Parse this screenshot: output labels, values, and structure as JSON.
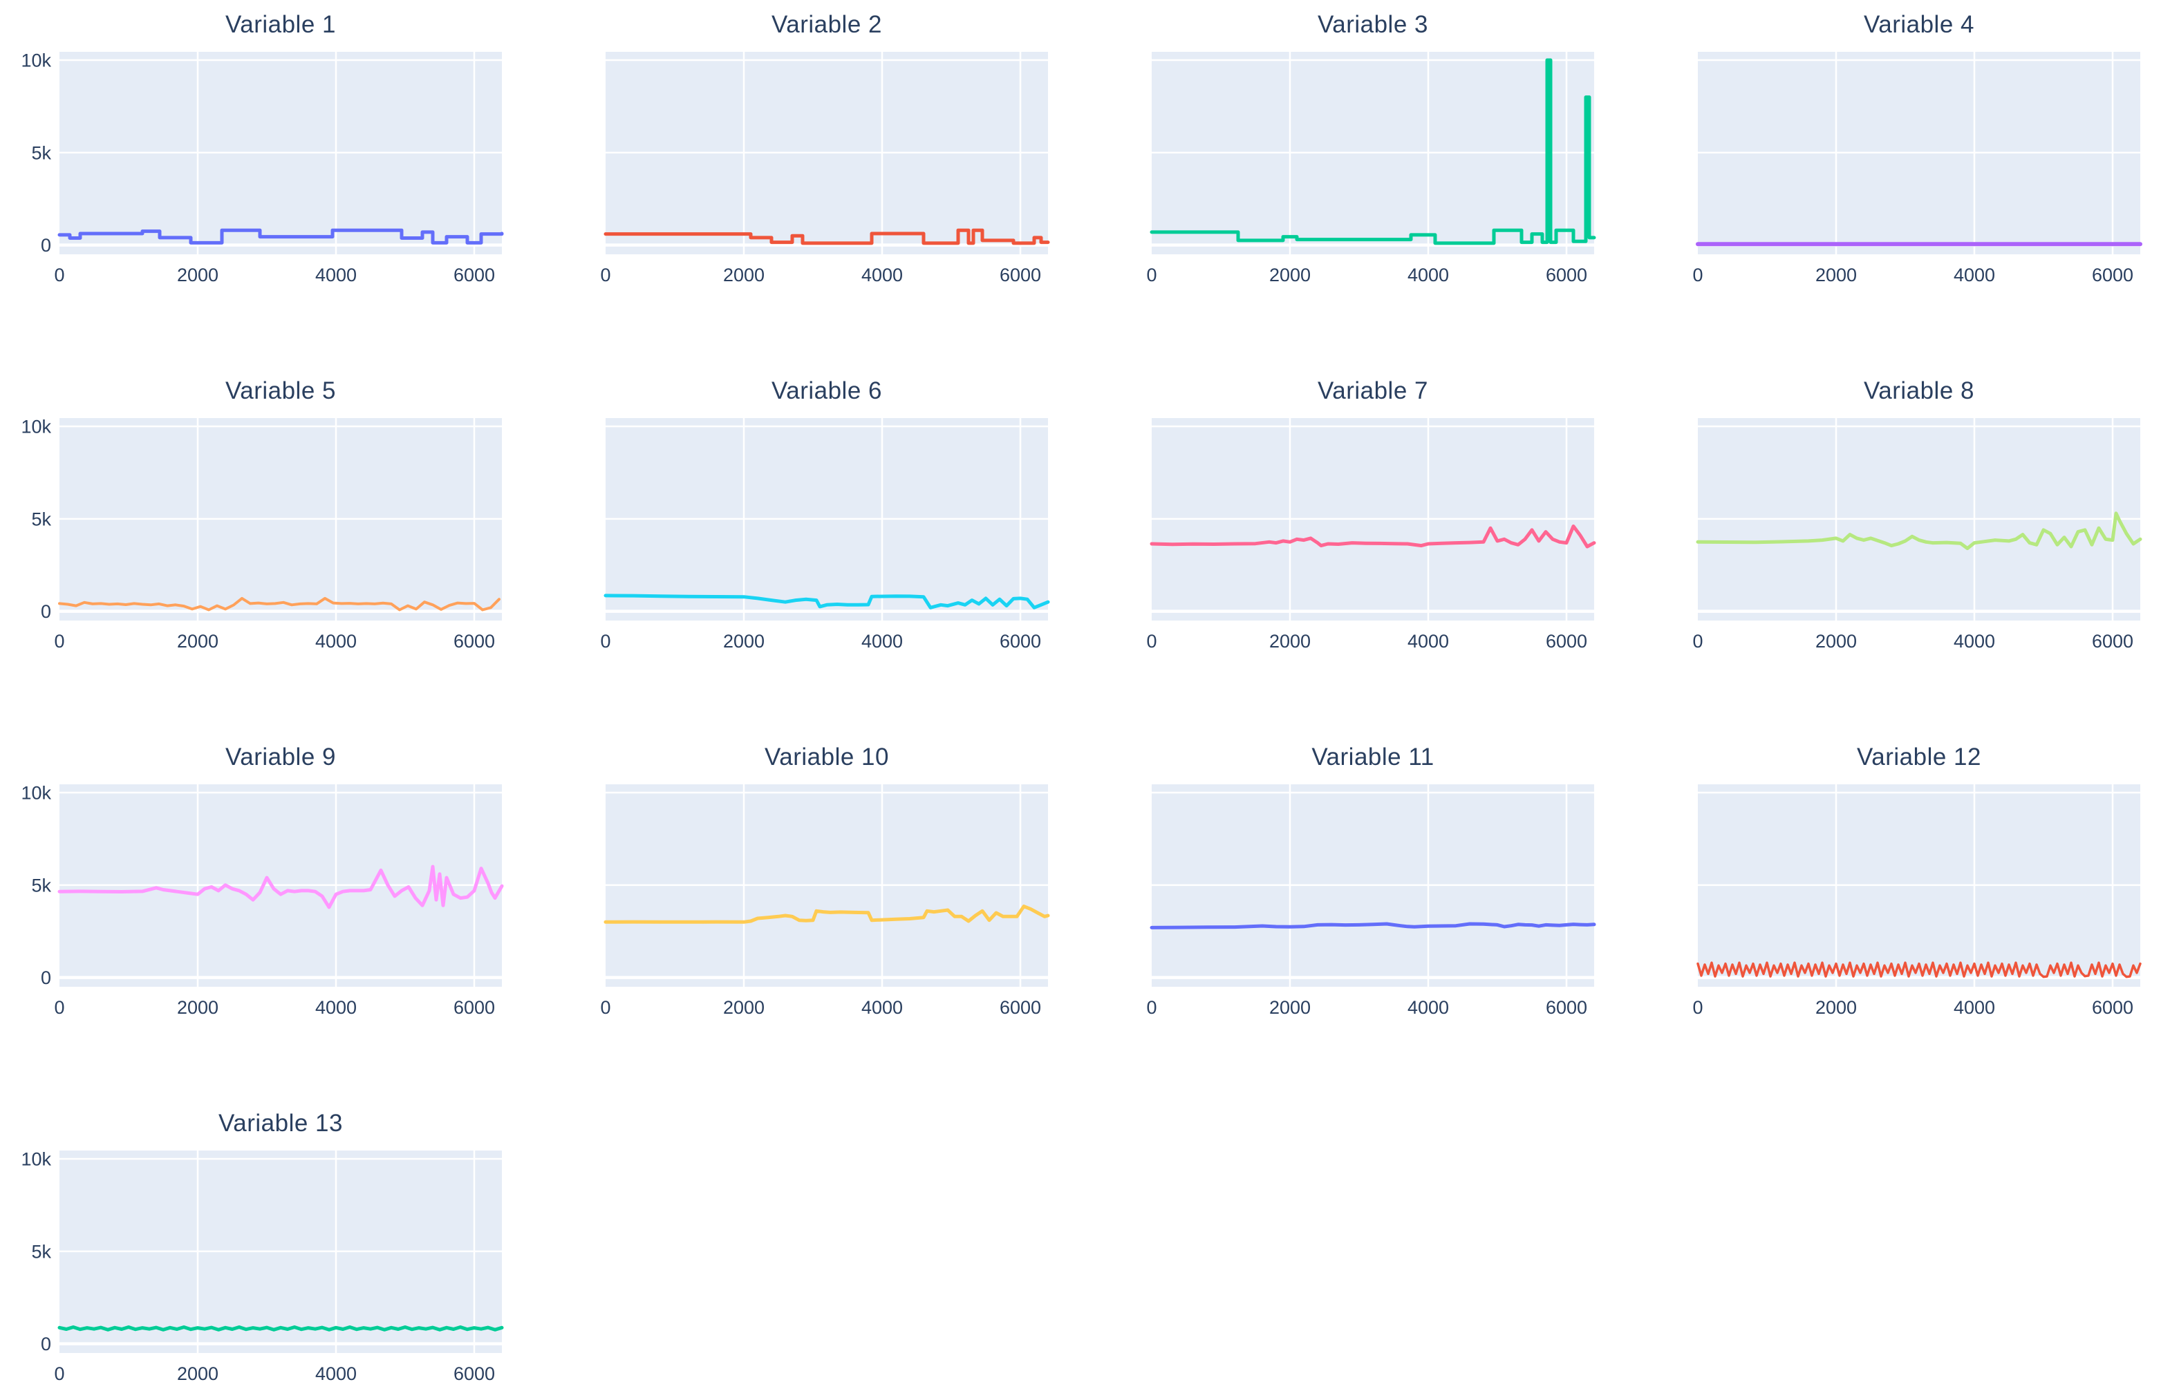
{
  "figure": {
    "background": "#ffffff",
    "plot_bg": "#e5ecf6",
    "grid_color": "#ffffff",
    "text_color": "#2a3f5f"
  },
  "axes": {
    "x_range": [
      0,
      6400
    ],
    "y_range": [
      -500,
      10450
    ],
    "x_ticks": [
      {
        "v": 0,
        "label": "0"
      },
      {
        "v": 2000,
        "label": "2000"
      },
      {
        "v": 4000,
        "label": "4000"
      },
      {
        "v": 6000,
        "label": "6000"
      }
    ],
    "y_ticks": [
      {
        "v": 0,
        "label": "0"
      },
      {
        "v": 5000,
        "label": "5k"
      },
      {
        "v": 10000,
        "label": "10k"
      }
    ],
    "grid": true,
    "legend": "none"
  },
  "chart_data": [
    {
      "type": "line",
      "title": "Variable 1",
      "color": "#636EFA",
      "line_shape": "hv",
      "show_yticks": true,
      "stroke_width": 5,
      "x": [
        0,
        150,
        300,
        1200,
        1450,
        1900,
        2350,
        2900,
        3950,
        4950,
        5250,
        5400,
        5600,
        5900,
        6100,
        6400
      ],
      "y": [
        550,
        380,
        620,
        750,
        400,
        120,
        800,
        450,
        800,
        380,
        700,
        120,
        450,
        120,
        600,
        620
      ]
    },
    {
      "type": "line",
      "title": "Variable 2",
      "color": "#EF553B",
      "line_shape": "hv",
      "show_yticks": false,
      "stroke_width": 5,
      "x": [
        0,
        2100,
        2400,
        2700,
        2850,
        3850,
        4600,
        5100,
        5250,
        5320,
        5450,
        5900,
        6200,
        6300,
        6400
      ],
      "y": [
        600,
        400,
        150,
        500,
        100,
        620,
        100,
        800,
        100,
        800,
        250,
        100,
        400,
        150,
        150
      ]
    },
    {
      "type": "line",
      "title": "Variable 3",
      "color": "#00CC96",
      "line_shape": "hv",
      "show_yticks": false,
      "stroke_width": 5,
      "x": [
        0,
        1250,
        1900,
        2100,
        3750,
        4100,
        4950,
        5350,
        5500,
        5650,
        5720,
        5770,
        5850,
        6100,
        6280,
        6330,
        6400
      ],
      "y": [
        700,
        250,
        450,
        300,
        550,
        100,
        800,
        150,
        600,
        150,
        10000,
        150,
        800,
        200,
        8000,
        400,
        400
      ]
    },
    {
      "type": "line",
      "title": "Variable 4",
      "color": "#AB63FA",
      "line_shape": "linear",
      "show_yticks": false,
      "stroke_width": 6,
      "x": [
        0,
        6400
      ],
      "y": [
        50,
        50
      ]
    },
    {
      "type": "line",
      "title": "Variable 5",
      "color": "#FFA15A",
      "line_shape": "linear",
      "show_yticks": true,
      "stroke_width": 4,
      "x_start": 0,
      "x_step": 120,
      "y": [
        420,
        380,
        300,
        480,
        400,
        420,
        380,
        400,
        360,
        420,
        380,
        350,
        400,
        300,
        350,
        280,
        120,
        260,
        80,
        300,
        120,
        340,
        700,
        420,
        450,
        400,
        420,
        480,
        350,
        400,
        420,
        400,
        700,
        450,
        420,
        430,
        400,
        420,
        400,
        440,
        400,
        80,
        300,
        120,
        500,
        350,
        100,
        320,
        450,
        420,
        430,
        80,
        200,
        650
      ]
    },
    {
      "type": "line",
      "title": "Variable 6",
      "color": "#19D3F3",
      "line_shape": "linear",
      "show_yticks": false,
      "stroke_width": 5,
      "x": [
        0,
        400,
        800,
        1200,
        1600,
        2000,
        2200,
        2400,
        2600,
        2750,
        2900,
        3050,
        3100,
        3200,
        3350,
        3500,
        3650,
        3800,
        3850,
        4200,
        4400,
        4600,
        4700,
        4850,
        4950,
        5100,
        5200,
        5300,
        5400,
        5500,
        5600,
        5700,
        5800,
        5900,
        6000,
        6100,
        6200,
        6300,
        6400
      ],
      "y": [
        850,
        840,
        820,
        800,
        790,
        780,
        700,
        600,
        500,
        600,
        650,
        600,
        250,
        350,
        380,
        350,
        350,
        360,
        800,
        820,
        810,
        780,
        200,
        350,
        300,
        450,
        350,
        600,
        400,
        700,
        350,
        650,
        300,
        680,
        700,
        650,
        200,
        350,
        500
      ]
    },
    {
      "type": "line",
      "title": "Variable 7",
      "color": "#FF6692",
      "line_shape": "linear",
      "show_yticks": false,
      "stroke_width": 5,
      "x": [
        0,
        300,
        600,
        900,
        1200,
        1500,
        1700,
        1800,
        1900,
        2000,
        2100,
        2200,
        2300,
        2400,
        2450,
        2550,
        2700,
        2900,
        3100,
        3300,
        3500,
        3700,
        3900,
        4000,
        4200,
        4400,
        4600,
        4800,
        4900,
        5000,
        5100,
        5200,
        5300,
        5400,
        5500,
        5600,
        5700,
        5800,
        5900,
        6000,
        6100,
        6200,
        6300,
        6400
      ],
      "y": [
        3650,
        3620,
        3640,
        3630,
        3650,
        3660,
        3750,
        3700,
        3800,
        3750,
        3900,
        3850,
        3950,
        3700,
        3550,
        3650,
        3630,
        3700,
        3680,
        3670,
        3660,
        3650,
        3550,
        3650,
        3680,
        3700,
        3720,
        3750,
        4500,
        3800,
        3900,
        3700,
        3600,
        3900,
        4400,
        3800,
        4300,
        3900,
        3750,
        3700,
        4600,
        4100,
        3500,
        3700
      ]
    },
    {
      "type": "line",
      "title": "Variable 8",
      "color": "#B6E880",
      "line_shape": "linear",
      "show_yticks": false,
      "stroke_width": 5,
      "x": [
        0,
        400,
        800,
        1200,
        1600,
        1800,
        2000,
        2100,
        2200,
        2300,
        2400,
        2500,
        2700,
        2800,
        2900,
        3000,
        3100,
        3200,
        3300,
        3400,
        3600,
        3800,
        3900,
        4000,
        4100,
        4300,
        4500,
        4600,
        4700,
        4800,
        4900,
        5000,
        5100,
        5200,
        5300,
        5400,
        5500,
        5600,
        5700,
        5800,
        5900,
        6000,
        6050,
        6100,
        6200,
        6300,
        6400
      ],
      "y": [
        3750,
        3740,
        3730,
        3760,
        3800,
        3850,
        3950,
        3800,
        4150,
        3950,
        3850,
        3950,
        3700,
        3550,
        3650,
        3800,
        4050,
        3850,
        3750,
        3700,
        3720,
        3680,
        3400,
        3700,
        3750,
        3850,
        3800,
        3900,
        4150,
        3700,
        3600,
        4400,
        4200,
        3600,
        4000,
        3500,
        4300,
        4400,
        3600,
        4500,
        3900,
        3850,
        5300,
        4900,
        4200,
        3650,
        3900
      ]
    },
    {
      "type": "line",
      "title": "Variable 9",
      "color": "#FF97FF",
      "line_shape": "linear",
      "show_yticks": true,
      "stroke_width": 5,
      "x": [
        0,
        300,
        600,
        900,
        1200,
        1400,
        1500,
        1700,
        1900,
        2000,
        2100,
        2200,
        2300,
        2400,
        2500,
        2600,
        2700,
        2800,
        2900,
        3000,
        3100,
        3200,
        3300,
        3400,
        3500,
        3600,
        3700,
        3800,
        3900,
        4000,
        4100,
        4200,
        4300,
        4400,
        4500,
        4650,
        4750,
        4850,
        4950,
        5050,
        5150,
        5250,
        5350,
        5400,
        5450,
        5500,
        5550,
        5600,
        5700,
        5800,
        5900,
        6000,
        6100,
        6200,
        6250,
        6300,
        6400
      ],
      "y": [
        4650,
        4660,
        4650,
        4640,
        4660,
        4850,
        4750,
        4650,
        4550,
        4500,
        4800,
        4900,
        4700,
        5000,
        4800,
        4700,
        4500,
        4200,
        4600,
        5400,
        4800,
        4500,
        4700,
        4650,
        4700,
        4700,
        4650,
        4400,
        3800,
        4500,
        4650,
        4700,
        4700,
        4700,
        4750,
        5800,
        5000,
        4400,
        4700,
        4900,
        4300,
        3900,
        4700,
        6000,
        4200,
        5600,
        3900,
        5400,
        4500,
        4300,
        4350,
        4700,
        5900,
        5100,
        4600,
        4300,
        4950
      ]
    },
    {
      "type": "line",
      "title": "Variable 10",
      "color": "#FECB52",
      "line_shape": "linear",
      "show_yticks": false,
      "stroke_width": 5,
      "x": [
        0,
        400,
        800,
        1200,
        1600,
        2000,
        2100,
        2200,
        2350,
        2500,
        2600,
        2700,
        2800,
        2900,
        3000,
        3050,
        3150,
        3250,
        3400,
        3600,
        3800,
        3850,
        4000,
        4200,
        4400,
        4600,
        4650,
        4750,
        4850,
        4950,
        5050,
        5150,
        5250,
        5350,
        5450,
        5550,
        5650,
        5750,
        5850,
        5950,
        6050,
        6150,
        6250,
        6350,
        6400
      ],
      "y": [
        3000,
        3010,
        3000,
        3000,
        3010,
        3000,
        3050,
        3200,
        3250,
        3300,
        3350,
        3300,
        3100,
        3080,
        3100,
        3600,
        3550,
        3520,
        3540,
        3520,
        3510,
        3100,
        3120,
        3150,
        3180,
        3250,
        3600,
        3550,
        3600,
        3650,
        3300,
        3300,
        3050,
        3350,
        3600,
        3100,
        3500,
        3300,
        3300,
        3300,
        3850,
        3700,
        3500,
        3300,
        3350
      ]
    },
    {
      "type": "line",
      "title": "Variable 11",
      "color": "#636EFA",
      "line_shape": "linear",
      "show_yticks": false,
      "stroke_width": 5,
      "x": [
        0,
        400,
        800,
        1200,
        1600,
        1800,
        2000,
        2200,
        2400,
        2600,
        2800,
        3000,
        3200,
        3400,
        3500,
        3600,
        3700,
        3800,
        4000,
        4200,
        4400,
        4600,
        4800,
        5000,
        5100,
        5200,
        5300,
        5400,
        5500,
        5600,
        5700,
        5800,
        5900,
        6000,
        6100,
        6200,
        6300,
        6400
      ],
      "y": [
        2700,
        2710,
        2720,
        2730,
        2790,
        2750,
        2740,
        2760,
        2850,
        2860,
        2840,
        2850,
        2870,
        2900,
        2850,
        2800,
        2760,
        2740,
        2780,
        2790,
        2800,
        2900,
        2890,
        2850,
        2750,
        2800,
        2870,
        2850,
        2840,
        2780,
        2850,
        2830,
        2820,
        2850,
        2880,
        2860,
        2850,
        2870
      ]
    },
    {
      "type": "line",
      "title": "Variable 12",
      "color": "#EF553B",
      "line_shape": "linear",
      "show_yticks": false,
      "stroke_width": 3.5,
      "x_start": 0,
      "x_step": 50,
      "y": [
        750,
        100,
        700,
        200,
        800,
        60,
        650,
        250,
        750,
        100,
        700,
        200,
        800,
        60,
        650,
        250,
        750,
        100,
        700,
        200,
        800,
        60,
        650,
        250,
        750,
        100,
        700,
        200,
        800,
        60,
        650,
        250,
        750,
        100,
        700,
        200,
        800,
        60,
        650,
        250,
        750,
        100,
        700,
        200,
        800,
        60,
        650,
        250,
        750,
        100,
        700,
        200,
        800,
        60,
        650,
        250,
        750,
        100,
        700,
        200,
        800,
        60,
        650,
        250,
        750,
        100,
        700,
        200,
        800,
        60,
        650,
        250,
        750,
        100,
        700,
        200,
        800,
        60,
        650,
        250,
        750,
        100,
        700,
        200,
        800,
        60,
        650,
        250,
        750,
        100,
        700,
        200,
        800,
        60,
        650,
        250,
        750,
        100,
        700,
        200,
        40,
        60,
        650,
        250,
        750,
        100,
        700,
        200,
        800,
        60,
        650,
        250,
        70,
        100,
        700,
        200,
        800,
        60,
        650,
        250,
        750,
        100,
        700,
        200,
        40,
        60,
        650,
        250,
        750
      ]
    },
    {
      "type": "line",
      "title": "Variable 13",
      "color": "#00CC96",
      "line_shape": "linear",
      "show_yticks": true,
      "stroke_width": 5,
      "x_start": 0,
      "x_step": 100,
      "y": [
        870,
        790,
        900,
        780,
        860,
        800,
        880,
        760,
        870,
        790,
        900,
        780,
        860,
        800,
        880,
        760,
        870,
        790,
        900,
        780,
        860,
        800,
        880,
        760,
        870,
        790,
        900,
        780,
        860,
        800,
        880,
        760,
        870,
        790,
        900,
        780,
        860,
        800,
        880,
        760,
        870,
        790,
        900,
        780,
        860,
        800,
        880,
        760,
        870,
        790,
        900,
        780,
        860,
        800,
        880,
        760,
        870,
        790,
        900,
        780,
        860,
        800,
        880,
        760,
        870
      ]
    }
  ]
}
